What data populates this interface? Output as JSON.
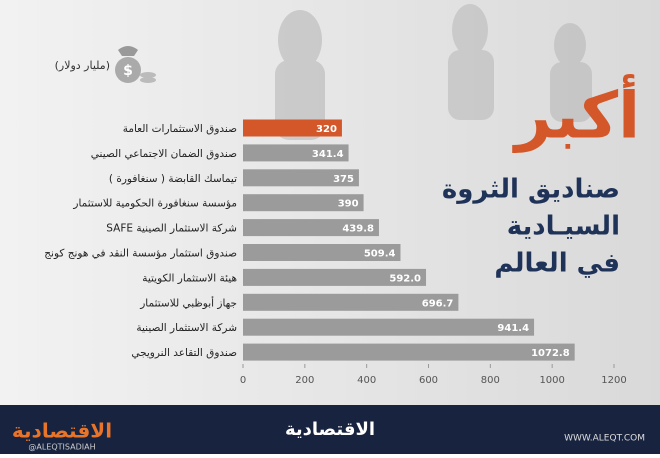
{
  "chart_data": {
    "type": "bar",
    "orientation": "horizontal",
    "title": "أكبر",
    "subtitle_lines": [
      "صناديق الثروة",
      "السيـادية",
      "في العالم"
    ],
    "unit_label": "(مليار دولار)",
    "categories": [
      "صندوق الاستثمارات العامة",
      "صندوق الضمان الاجتماعي الصيني",
      "تيماسك القابضة ( سنغافورة )",
      "مؤسسة سنغافورة الحكومية للاستثمار",
      "شركة الاستثمار الصينية SAFE",
      "صندوق استثمار مؤسسة النقد في هونج كونج",
      "هيئة الاستثمار الكويتية",
      "جهاز أبوظبي للاستثمار",
      "شركة الاستثمار الصينية",
      "صندوق التقاعد النرويجي"
    ],
    "values": [
      320,
      341.4,
      375,
      390,
      439.8,
      509.4,
      592.0,
      696.7,
      941.4,
      1072.8
    ],
    "value_labels": [
      "320",
      "341.4",
      "375",
      "390",
      "439.8",
      "509.4",
      "592.0",
      "696.7",
      "941.4",
      "1072.8"
    ],
    "colors": [
      "#d4572a",
      "#9b9b9b",
      "#9b9b9b",
      "#9b9b9b",
      "#9b9b9b",
      "#9b9b9b",
      "#9b9b9b",
      "#9b9b9b",
      "#9b9b9b",
      "#9b9b9b"
    ],
    "xlim": [
      0,
      1200
    ],
    "xticks": [
      0,
      200,
      400,
      600,
      800,
      1000,
      1200
    ],
    "grid": false
  },
  "footer": {
    "center_logo": "الاقتصادية",
    "left_logo": "الاقتصادية",
    "handle": "@ALEQTISADIAH",
    "url": "WWW.ALEQT.COM"
  }
}
